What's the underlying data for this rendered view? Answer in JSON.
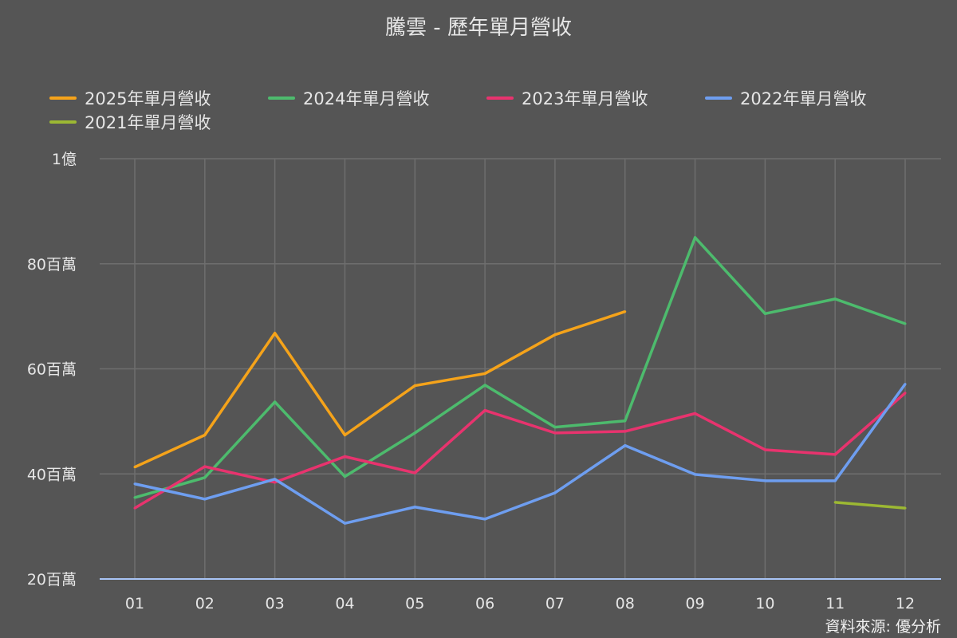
{
  "source_label": "資料來源: 優分析",
  "chart_data": {
    "type": "line",
    "title": "騰雲 - 歷年單月營收",
    "xlabel": "",
    "ylabel": "",
    "categories": [
      "01",
      "02",
      "03",
      "04",
      "05",
      "06",
      "07",
      "08",
      "09",
      "10",
      "11",
      "12"
    ],
    "ylim": [
      20,
      100
    ],
    "yticks": [
      {
        "value": 20,
        "label": "20百萬"
      },
      {
        "value": 40,
        "label": "40百萬"
      },
      {
        "value": 60,
        "label": "60百萬"
      },
      {
        "value": 80,
        "label": "80百萬"
      },
      {
        "value": 100,
        "label": "1億"
      }
    ],
    "grid": true,
    "legend_position": "top",
    "series": [
      {
        "name": "2025年單月營收",
        "color": "#f5a31a",
        "values": [
          41.3,
          47.4,
          66.8,
          47.4,
          56.8,
          59.1,
          66.5,
          70.9,
          null,
          null,
          null,
          null
        ]
      },
      {
        "name": "2024年單月營收",
        "color": "#4dbb6d",
        "values": [
          35.5,
          39.3,
          53.7,
          39.5,
          47.8,
          56.9,
          48.9,
          50.1,
          85.0,
          70.5,
          73.3,
          68.6
        ]
      },
      {
        "name": "2023年單月營收",
        "color": "#e8336e",
        "values": [
          33.5,
          41.4,
          38.4,
          43.3,
          40.2,
          52.1,
          47.8,
          48.1,
          51.5,
          44.6,
          43.7,
          55.4
        ]
      },
      {
        "name": "2022年單月營收",
        "color": "#6e9ef0",
        "values": [
          38.1,
          35.2,
          39.0,
          30.6,
          33.7,
          31.4,
          36.4,
          45.4,
          39.9,
          38.7,
          38.7,
          57.1
        ]
      },
      {
        "name": "2021年單月營收",
        "color": "#9cb833",
        "values": [
          null,
          null,
          null,
          null,
          null,
          null,
          null,
          null,
          null,
          null,
          34.6,
          33.5
        ]
      }
    ]
  }
}
